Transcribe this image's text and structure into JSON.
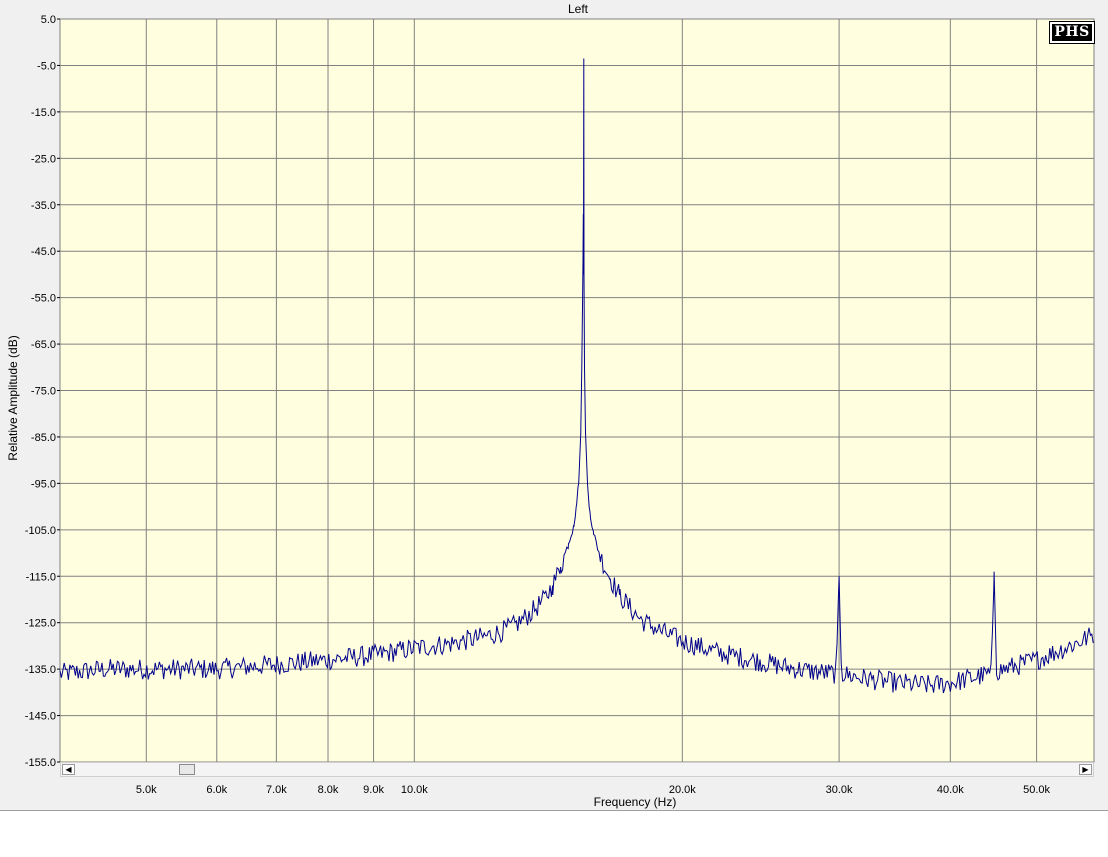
{
  "chart_data": {
    "type": "line",
    "title": "Left",
    "xlabel": "Frequency (Hz)",
    "ylabel": "Relative Amplitude (dB)",
    "x_scale": "log",
    "xlim": [
      4000,
      58000
    ],
    "ylim": [
      -155,
      5
    ],
    "yticks": [
      5.0,
      -5.0,
      -15.0,
      -25.0,
      -35.0,
      -45.0,
      -55.0,
      -65.0,
      -75.0,
      -85.0,
      -95.0,
      -105.0,
      -115.0,
      -125.0,
      -135.0,
      -145.0,
      -155.0
    ],
    "ytick_labels": [
      "5.0",
      "-5.0",
      "-15.0",
      "-25.0",
      "-35.0",
      "-45.0",
      "-55.0",
      "-65.0",
      "-75.0",
      "-85.0",
      "-95.0",
      "-105.0",
      "-115.0",
      "-125.0",
      "-135.0",
      "-145.0",
      "-155.0"
    ],
    "xticks": [
      5000,
      6000,
      7000,
      8000,
      9000,
      10000,
      20000,
      30000,
      40000,
      50000
    ],
    "xtick_labels": [
      "5.0k",
      "6.0k",
      "7.0k",
      "8.0k",
      "9.0k",
      "10.0k",
      "20.0k",
      "30.0k",
      "40.0k",
      "50.0k"
    ],
    "grid": true,
    "colors": {
      "plot_background": "#ffffe0",
      "grid": "#808080",
      "series": "#00008b"
    },
    "series": [
      {
        "name": "",
        "points": [
          [
            4000,
            -136
          ],
          [
            4500,
            -135
          ],
          [
            5000,
            -135
          ],
          [
            5500,
            -135
          ],
          [
            6000,
            -135
          ],
          [
            7000,
            -134
          ],
          [
            8000,
            -133
          ],
          [
            9000,
            -132
          ],
          [
            10000,
            -130.5
          ],
          [
            11000,
            -129.5
          ],
          [
            12000,
            -128
          ],
          [
            12500,
            -127
          ],
          [
            13000,
            -125.5
          ],
          [
            13500,
            -123
          ],
          [
            14000,
            -120
          ],
          [
            14300,
            -117
          ],
          [
            14600,
            -113
          ],
          [
            14900,
            -108
          ],
          [
            15100,
            -104
          ],
          [
            15200,
            -100
          ],
          [
            15300,
            -95
          ],
          [
            15380,
            -84
          ],
          [
            15420,
            -70
          ],
          [
            15450,
            -57
          ],
          [
            15470,
            -47
          ],
          [
            15480,
            -37
          ],
          [
            15490,
            -50
          ],
          [
            15500,
            -3.5
          ],
          [
            15510,
            -50
          ],
          [
            15530,
            -70
          ],
          [
            15570,
            -84
          ],
          [
            15650,
            -95
          ],
          [
            15750,
            -101
          ],
          [
            15900,
            -106
          ],
          [
            16200,
            -111
          ],
          [
            16600,
            -115.5
          ],
          [
            17000,
            -119
          ],
          [
            17500,
            -122
          ],
          [
            18000,
            -124.5
          ],
          [
            19000,
            -127
          ],
          [
            20000,
            -129
          ],
          [
            22000,
            -131.5
          ],
          [
            24000,
            -133
          ],
          [
            26000,
            -134.5
          ],
          [
            28000,
            -135.5
          ],
          [
            29800,
            -136
          ],
          [
            30000,
            -115
          ],
          [
            30200,
            -136
          ],
          [
            32000,
            -137
          ],
          [
            35000,
            -138
          ],
          [
            38000,
            -138.5
          ],
          [
            40000,
            -138
          ],
          [
            42000,
            -137
          ],
          [
            44500,
            -136
          ],
          [
            44800,
            -114
          ],
          [
            45100,
            -135.5
          ],
          [
            47000,
            -134.5
          ],
          [
            50000,
            -133
          ],
          [
            53000,
            -131
          ],
          [
            56000,
            -129
          ],
          [
            58000,
            -127.5
          ]
        ]
      }
    ]
  }
}
